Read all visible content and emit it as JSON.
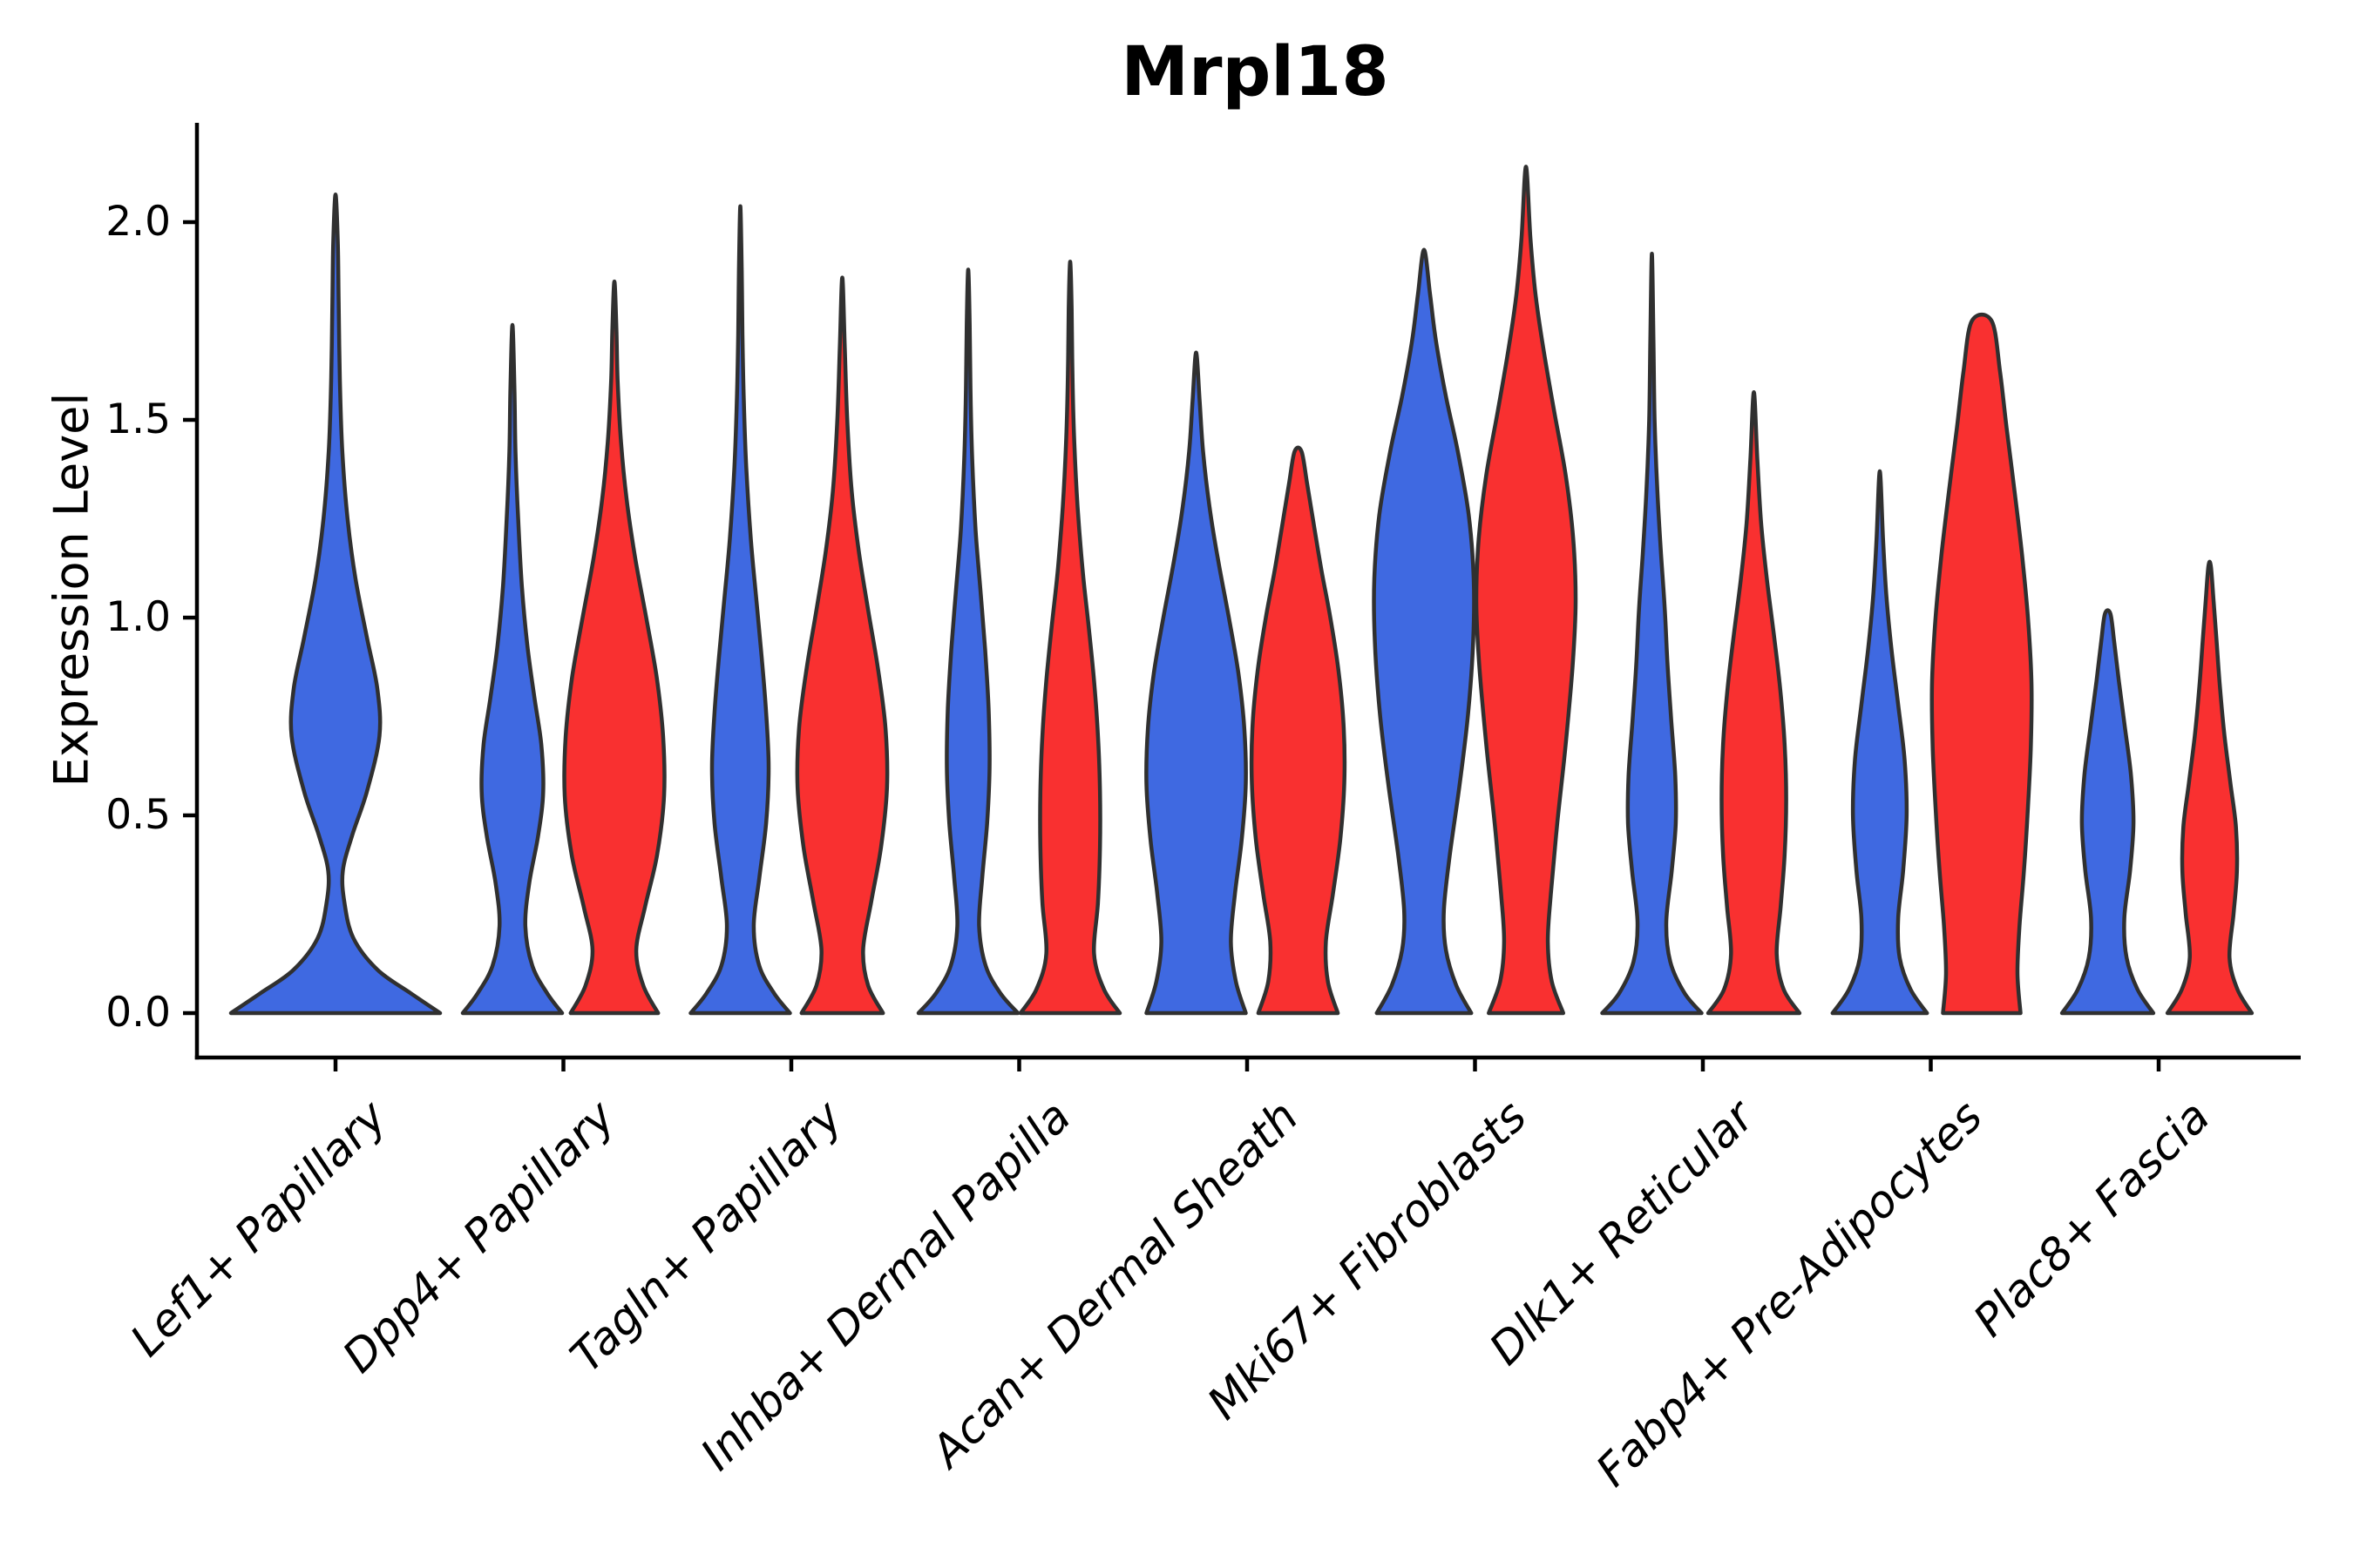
{
  "figure": {
    "background": "#ffffff"
  },
  "colors": {
    "blue": "#3F69E1",
    "red": "#F93030",
    "outline": "#303030",
    "axis": "#000000",
    "text": "#000000"
  },
  "chart_data": {
    "type": "violin",
    "title": "Mrpl18",
    "ylabel": "Expression Level",
    "xlabel": "",
    "ylim": [
      -0.11,
      2.25
    ],
    "grid": false,
    "legend": "none",
    "yticks": [
      0.0,
      0.5,
      1.0,
      1.5,
      2.0
    ],
    "ytick_labels": [
      "0.0",
      "0.5",
      "1.0",
      "1.5",
      "2.0"
    ],
    "categories": [
      "Lef1+ Papillary",
      "Dpp4+ Papillary",
      "Tagln+ Papillary",
      "Inhba+ Dermal Papilla",
      "Acan+ Dermal Sheath",
      "Mki67+ Fibroblasts",
      "Dlk1+ Reticular",
      "Fabp4+ Pre-Adipocytes",
      "Plac8+ Fascia"
    ],
    "groups": [
      {
        "name": "blue",
        "color": "blue"
      },
      {
        "name": "red",
        "color": "red"
      }
    ],
    "note": "Each violin: peak = maximum expression level reached; profile = [expression level, relative half-width 0..1] density outline. First category has a single blue violin only.",
    "violins": [
      {
        "category": 0,
        "side": "single",
        "color": "blue",
        "peak": 2.07,
        "profile": [
          [
            0,
            1.0
          ],
          [
            0.05,
            0.72
          ],
          [
            0.11,
            0.4
          ],
          [
            0.19,
            0.17
          ],
          [
            0.28,
            0.085
          ],
          [
            0.36,
            0.07
          ],
          [
            0.45,
            0.16
          ],
          [
            0.56,
            0.3
          ],
          [
            0.7,
            0.42
          ],
          [
            0.82,
            0.4
          ],
          [
            0.95,
            0.3
          ],
          [
            1.1,
            0.19
          ],
          [
            1.25,
            0.115
          ],
          [
            1.42,
            0.065
          ],
          [
            1.6,
            0.042
          ],
          [
            1.8,
            0.03
          ],
          [
            1.95,
            0.022
          ],
          [
            2.07,
            0
          ]
        ]
      },
      {
        "category": 1,
        "side": "blue",
        "color": "blue",
        "peak": 1.74,
        "profile": [
          [
            0,
            1.0
          ],
          [
            0.05,
            0.7
          ],
          [
            0.12,
            0.4
          ],
          [
            0.22,
            0.26
          ],
          [
            0.33,
            0.34
          ],
          [
            0.45,
            0.52
          ],
          [
            0.56,
            0.62
          ],
          [
            0.68,
            0.58
          ],
          [
            0.8,
            0.44
          ],
          [
            0.93,
            0.3
          ],
          [
            1.08,
            0.19
          ],
          [
            1.25,
            0.115
          ],
          [
            1.42,
            0.062
          ],
          [
            1.58,
            0.04
          ],
          [
            1.74,
            0
          ]
        ]
      },
      {
        "category": 1,
        "side": "red",
        "color": "red",
        "peak": 1.85,
        "profile": [
          [
            0,
            0.88
          ],
          [
            0.07,
            0.58
          ],
          [
            0.16,
            0.44
          ],
          [
            0.27,
            0.62
          ],
          [
            0.4,
            0.86
          ],
          [
            0.55,
            1.0
          ],
          [
            0.7,
            0.98
          ],
          [
            0.85,
            0.85
          ],
          [
            1.0,
            0.64
          ],
          [
            1.15,
            0.42
          ],
          [
            1.3,
            0.245
          ],
          [
            1.45,
            0.13
          ],
          [
            1.6,
            0.065
          ],
          [
            1.73,
            0.04
          ],
          [
            1.85,
            0
          ]
        ]
      },
      {
        "category": 2,
        "side": "blue",
        "color": "blue",
        "peak": 2.04,
        "profile": [
          [
            0,
            1.0
          ],
          [
            0.05,
            0.68
          ],
          [
            0.12,
            0.38
          ],
          [
            0.22,
            0.27
          ],
          [
            0.34,
            0.38
          ],
          [
            0.48,
            0.52
          ],
          [
            0.62,
            0.57
          ],
          [
            0.76,
            0.52
          ],
          [
            0.9,
            0.43
          ],
          [
            1.05,
            0.32
          ],
          [
            1.2,
            0.21
          ],
          [
            1.38,
            0.12
          ],
          [
            1.55,
            0.07
          ],
          [
            1.72,
            0.042
          ],
          [
            1.88,
            0.028
          ],
          [
            2.04,
            0
          ]
        ]
      },
      {
        "category": 2,
        "side": "red",
        "color": "red",
        "peak": 1.86,
        "profile": [
          [
            0,
            0.82
          ],
          [
            0.07,
            0.52
          ],
          [
            0.16,
            0.42
          ],
          [
            0.28,
            0.58
          ],
          [
            0.42,
            0.78
          ],
          [
            0.57,
            0.9
          ],
          [
            0.72,
            0.87
          ],
          [
            0.87,
            0.72
          ],
          [
            1.02,
            0.52
          ],
          [
            1.17,
            0.33
          ],
          [
            1.32,
            0.19
          ],
          [
            1.5,
            0.1
          ],
          [
            1.68,
            0.05
          ],
          [
            1.86,
            0
          ]
        ]
      },
      {
        "category": 3,
        "side": "blue",
        "color": "blue",
        "peak": 1.88,
        "profile": [
          [
            0,
            1.0
          ],
          [
            0.05,
            0.65
          ],
          [
            0.12,
            0.35
          ],
          [
            0.22,
            0.22
          ],
          [
            0.34,
            0.28
          ],
          [
            0.48,
            0.38
          ],
          [
            0.62,
            0.43
          ],
          [
            0.77,
            0.41
          ],
          [
            0.92,
            0.34
          ],
          [
            1.07,
            0.245
          ],
          [
            1.22,
            0.15
          ],
          [
            1.4,
            0.08
          ],
          [
            1.58,
            0.045
          ],
          [
            1.74,
            0.03
          ],
          [
            1.88,
            0
          ]
        ]
      },
      {
        "category": 3,
        "side": "red",
        "color": "red",
        "peak": 1.9,
        "profile": [
          [
            0,
            1.0
          ],
          [
            0.06,
            0.68
          ],
          [
            0.15,
            0.48
          ],
          [
            0.28,
            0.56
          ],
          [
            0.42,
            0.6
          ],
          [
            0.56,
            0.6
          ],
          [
            0.7,
            0.56
          ],
          [
            0.84,
            0.48
          ],
          [
            0.98,
            0.37
          ],
          [
            1.12,
            0.25
          ],
          [
            1.28,
            0.15
          ],
          [
            1.45,
            0.08
          ],
          [
            1.62,
            0.045
          ],
          [
            1.78,
            0.03
          ],
          [
            1.9,
            0
          ]
        ]
      },
      {
        "category": 4,
        "side": "blue",
        "color": "blue",
        "peak": 1.67,
        "profile": [
          [
            0,
            1.0
          ],
          [
            0.08,
            0.8
          ],
          [
            0.18,
            0.7
          ],
          [
            0.3,
            0.78
          ],
          [
            0.44,
            0.92
          ],
          [
            0.58,
            1.0
          ],
          [
            0.72,
            0.97
          ],
          [
            0.86,
            0.85
          ],
          [
            1.0,
            0.66
          ],
          [
            1.14,
            0.45
          ],
          [
            1.28,
            0.27
          ],
          [
            1.42,
            0.14
          ],
          [
            1.55,
            0.07
          ],
          [
            1.67,
            0
          ]
        ]
      },
      {
        "category": 4,
        "side": "red",
        "color": "red",
        "peak": 1.42,
        "profile": [
          [
            0,
            0.8
          ],
          [
            0.08,
            0.6
          ],
          [
            0.18,
            0.56
          ],
          [
            0.3,
            0.7
          ],
          [
            0.44,
            0.85
          ],
          [
            0.58,
            0.93
          ],
          [
            0.72,
            0.92
          ],
          [
            0.86,
            0.82
          ],
          [
            1.0,
            0.65
          ],
          [
            1.12,
            0.47
          ],
          [
            1.24,
            0.31
          ],
          [
            1.34,
            0.18
          ],
          [
            1.42,
            0.07
          ]
        ]
      },
      {
        "category": 5,
        "side": "blue",
        "color": "blue",
        "peak": 1.93,
        "profile": [
          [
            0,
            0.95
          ],
          [
            0.07,
            0.65
          ],
          [
            0.16,
            0.44
          ],
          [
            0.26,
            0.4
          ],
          [
            0.4,
            0.52
          ],
          [
            0.58,
            0.72
          ],
          [
            0.76,
            0.89
          ],
          [
            0.94,
            0.99
          ],
          [
            1.1,
            1.0
          ],
          [
            1.26,
            0.9
          ],
          [
            1.42,
            0.68
          ],
          [
            1.56,
            0.44
          ],
          [
            1.7,
            0.24
          ],
          [
            1.82,
            0.12
          ],
          [
            1.93,
            0
          ]
        ]
      },
      {
        "category": 5,
        "side": "red",
        "color": "red",
        "peak": 2.14,
        "profile": [
          [
            0,
            0.75
          ],
          [
            0.08,
            0.52
          ],
          [
            0.18,
            0.44
          ],
          [
            0.3,
            0.5
          ],
          [
            0.48,
            0.63
          ],
          [
            0.68,
            0.8
          ],
          [
            0.88,
            0.94
          ],
          [
            1.04,
            1.0
          ],
          [
            1.2,
            0.95
          ],
          [
            1.36,
            0.8
          ],
          [
            1.52,
            0.57
          ],
          [
            1.68,
            0.35
          ],
          [
            1.82,
            0.19
          ],
          [
            1.96,
            0.09
          ],
          [
            2.14,
            0
          ]
        ]
      },
      {
        "category": 6,
        "side": "blue",
        "color": "blue",
        "peak": 1.92,
        "profile": [
          [
            0,
            1.0
          ],
          [
            0.05,
            0.66
          ],
          [
            0.13,
            0.37
          ],
          [
            0.23,
            0.29
          ],
          [
            0.36,
            0.4
          ],
          [
            0.48,
            0.48
          ],
          [
            0.6,
            0.47
          ],
          [
            0.74,
            0.39
          ],
          [
            0.88,
            0.315
          ],
          [
            1.02,
            0.26
          ],
          [
            1.16,
            0.185
          ],
          [
            1.32,
            0.11
          ],
          [
            1.5,
            0.055
          ],
          [
            1.7,
            0.032
          ],
          [
            1.92,
            0
          ]
        ]
      },
      {
        "category": 6,
        "side": "red",
        "color": "red",
        "peak": 1.57,
        "profile": [
          [
            0,
            0.92
          ],
          [
            0.06,
            0.6
          ],
          [
            0.15,
            0.46
          ],
          [
            0.27,
            0.54
          ],
          [
            0.4,
            0.62
          ],
          [
            0.54,
            0.65
          ],
          [
            0.68,
            0.62
          ],
          [
            0.82,
            0.53
          ],
          [
            0.96,
            0.4
          ],
          [
            1.1,
            0.26
          ],
          [
            1.24,
            0.145
          ],
          [
            1.4,
            0.07
          ],
          [
            1.57,
            0
          ]
        ]
      },
      {
        "category": 7,
        "side": "blue",
        "color": "blue",
        "peak": 1.37,
        "profile": [
          [
            0,
            0.95
          ],
          [
            0.06,
            0.62
          ],
          [
            0.14,
            0.4
          ],
          [
            0.24,
            0.37
          ],
          [
            0.36,
            0.47
          ],
          [
            0.5,
            0.54
          ],
          [
            0.64,
            0.5
          ],
          [
            0.78,
            0.37
          ],
          [
            0.92,
            0.235
          ],
          [
            1.06,
            0.13
          ],
          [
            1.2,
            0.065
          ],
          [
            1.37,
            0
          ]
        ]
      },
      {
        "category": 7,
        "side": "red",
        "color": "red",
        "peak": 1.75,
        "profile": [
          [
            0,
            0.78
          ],
          [
            0.1,
            0.72
          ],
          [
            0.22,
            0.76
          ],
          [
            0.36,
            0.85
          ],
          [
            0.52,
            0.93
          ],
          [
            0.68,
            0.99
          ],
          [
            0.84,
            1.0
          ],
          [
            1.0,
            0.93
          ],
          [
            1.16,
            0.81
          ],
          [
            1.32,
            0.66
          ],
          [
            1.48,
            0.5
          ],
          [
            1.62,
            0.37
          ],
          [
            1.75,
            0.2
          ]
        ]
      },
      {
        "category": 8,
        "side": "blue",
        "color": "blue",
        "peak": 1.01,
        "profile": [
          [
            0,
            0.92
          ],
          [
            0.06,
            0.6
          ],
          [
            0.14,
            0.38
          ],
          [
            0.24,
            0.335
          ],
          [
            0.36,
            0.45
          ],
          [
            0.48,
            0.52
          ],
          [
            0.6,
            0.47
          ],
          [
            0.72,
            0.35
          ],
          [
            0.84,
            0.225
          ],
          [
            0.94,
            0.13
          ],
          [
            1.01,
            0.055
          ]
        ]
      },
      {
        "category": 8,
        "side": "red",
        "color": "red",
        "peak": 1.13,
        "profile": [
          [
            0,
            0.85
          ],
          [
            0.06,
            0.56
          ],
          [
            0.14,
            0.4
          ],
          [
            0.25,
            0.48
          ],
          [
            0.36,
            0.55
          ],
          [
            0.47,
            0.53
          ],
          [
            0.58,
            0.42
          ],
          [
            0.7,
            0.3
          ],
          [
            0.82,
            0.21
          ],
          [
            0.94,
            0.14
          ],
          [
            1.04,
            0.08
          ],
          [
            1.13,
            0.025
          ]
        ]
      }
    ]
  }
}
